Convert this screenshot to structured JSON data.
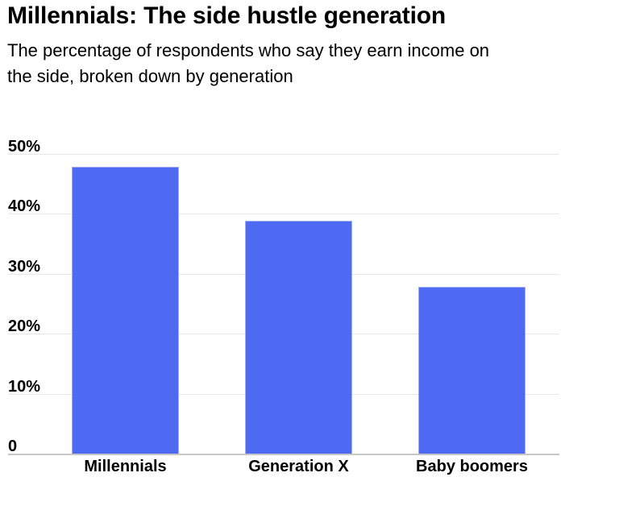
{
  "header": {
    "title": "Millennials: The side hustle generation",
    "subtitle_line1": "The percentage of respondents who say they earn income on",
    "subtitle_line2": "the side, broken down by generation"
  },
  "chart_data": {
    "type": "bar",
    "title": "Millennials: The side hustle generation",
    "subtitle": "The percentage of respondents who say they earn income on the side, broken down by generation",
    "categories": [
      "Millennials",
      "Generation X",
      "Baby boomers"
    ],
    "values": [
      48,
      39,
      28
    ],
    "xlabel": "",
    "ylabel": "",
    "ylim": [
      0,
      50
    ],
    "yticks": [
      {
        "value": 0,
        "label": "0"
      },
      {
        "value": 10,
        "label": "10%"
      },
      {
        "value": 20,
        "label": "20%"
      },
      {
        "value": 30,
        "label": "30%"
      },
      {
        "value": 40,
        "label": "40%"
      },
      {
        "value": 50,
        "label": "50%"
      }
    ],
    "grid": "horizontal",
    "legend_position": "none",
    "bar_color": "#4e6af3"
  },
  "colors": {
    "bar": "#4e6af3",
    "grid_line": "#e7e7e7",
    "axis_line": "#c8c8c8",
    "text": "#000000",
    "background": "#ffffff"
  }
}
